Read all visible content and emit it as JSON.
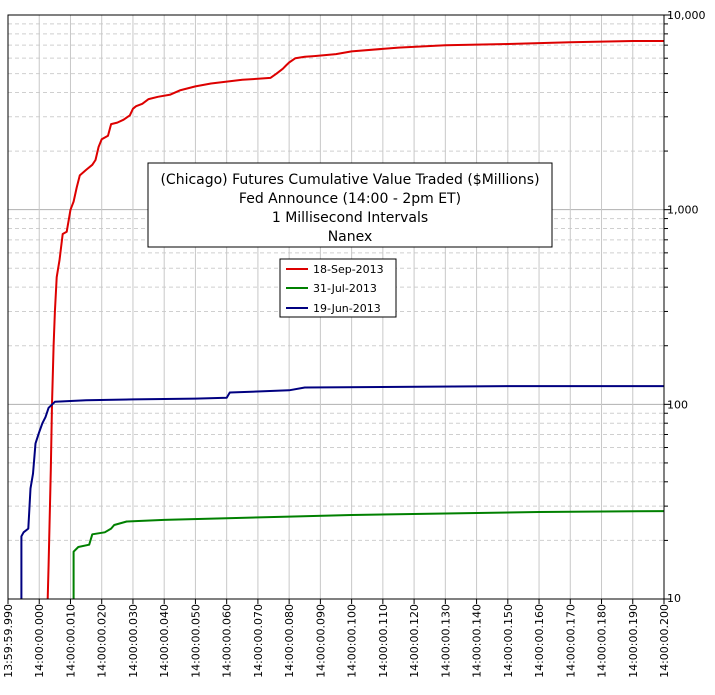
{
  "chart_data": {
    "type": "line",
    "title_lines": [
      "(Chicago) Futures Cumulative Value Traded ($Millions)",
      "Fed Announce (14:00 - 2pm ET)",
      "1 Millisecond Intervals",
      "Nanex"
    ],
    "x_ticks": [
      "13:59:59.990",
      "14:00:00.000",
      "14:00:00.010",
      "14:00:00.020",
      "14:00:00.030",
      "14:00:00.040",
      "14:00:00.050",
      "14:00:00.060",
      "14:00:00.070",
      "14:00:00.080",
      "14:00:00.090",
      "14:00:00.100",
      "14:00:00.110",
      "14:00:00.120",
      "14:00:00.130",
      "14:00:00.140",
      "14:00:00.150",
      "14:00:00.160",
      "14:00:00.170",
      "14:00:00.180",
      "14:00:00.190",
      "14:00:00.200"
    ],
    "x_range_ms": [
      -10,
      200
    ],
    "y_scale": "log",
    "y_range": [
      10,
      10000
    ],
    "y_ticks": [
      {
        "value": 10,
        "label": "10"
      },
      {
        "value": 100,
        "label": "100"
      },
      {
        "value": 1000,
        "label": "1,000"
      },
      {
        "value": 10000,
        "label": "10,000"
      }
    ],
    "grid": true,
    "legend_placement": "center",
    "series": [
      {
        "name": "18-Sep-2013",
        "color": "#dd0000",
        "points": [
          [
            2.7,
            10
          ],
          [
            3,
            15
          ],
          [
            3.7,
            46
          ],
          [
            4.1,
            100
          ],
          [
            4.6,
            200
          ],
          [
            5,
            300
          ],
          [
            5.6,
            450
          ],
          [
            6.5,
            550
          ],
          [
            7.5,
            750
          ],
          [
            8.8,
            770
          ],
          [
            10,
            1000
          ],
          [
            11,
            1100
          ],
          [
            12,
            1300
          ],
          [
            13,
            1500
          ],
          [
            15,
            1600
          ],
          [
            17,
            1700
          ],
          [
            18,
            1800
          ],
          [
            19,
            2100
          ],
          [
            20,
            2300
          ],
          [
            22,
            2400
          ],
          [
            23,
            2750
          ],
          [
            25,
            2800
          ],
          [
            27,
            2900
          ],
          [
            29,
            3050
          ],
          [
            30,
            3300
          ],
          [
            31,
            3400
          ],
          [
            33,
            3500
          ],
          [
            35,
            3700
          ],
          [
            38,
            3800
          ],
          [
            42,
            3900
          ],
          [
            45,
            4100
          ],
          [
            50,
            4300
          ],
          [
            55,
            4450
          ],
          [
            60,
            4550
          ],
          [
            65,
            4650
          ],
          [
            70,
            4700
          ],
          [
            74,
            4750
          ],
          [
            76,
            5000
          ],
          [
            78,
            5300
          ],
          [
            79,
            5500
          ],
          [
            80,
            5700
          ],
          [
            82,
            6000
          ],
          [
            85,
            6100
          ],
          [
            88,
            6150
          ],
          [
            95,
            6300
          ],
          [
            100,
            6500
          ],
          [
            115,
            6800
          ],
          [
            130,
            7000
          ],
          [
            150,
            7100
          ],
          [
            170,
            7250
          ],
          [
            190,
            7350
          ],
          [
            200,
            7350
          ]
        ]
      },
      {
        "name": "31-Jul-2013",
        "color": "#008000",
        "points": [
          [
            11,
            10
          ],
          [
            11,
            17.5
          ],
          [
            12.5,
            18.5
          ],
          [
            16,
            19
          ],
          [
            17,
            21.5
          ],
          [
            21,
            22
          ],
          [
            23,
            23
          ],
          [
            24,
            24
          ],
          [
            28,
            25
          ],
          [
            40,
            25.5
          ],
          [
            60,
            26
          ],
          [
            80,
            26.5
          ],
          [
            100,
            27
          ],
          [
            130,
            27.5
          ],
          [
            160,
            28
          ],
          [
            200,
            28.3
          ]
        ]
      },
      {
        "name": "19-Jun-2013",
        "color": "#000080",
        "points": [
          [
            -5.7,
            10
          ],
          [
            -5.7,
            21
          ],
          [
            -5,
            22
          ],
          [
            -3.5,
            23
          ],
          [
            -2.8,
            37
          ],
          [
            -2,
            44
          ],
          [
            -1.2,
            63
          ],
          [
            0,
            72
          ],
          [
            1,
            80
          ],
          [
            2,
            86
          ],
          [
            3,
            96
          ],
          [
            5,
            103
          ],
          [
            10,
            104
          ],
          [
            15,
            105
          ],
          [
            30,
            106
          ],
          [
            50,
            107
          ],
          [
            60,
            108
          ],
          [
            61,
            115
          ],
          [
            80,
            118
          ],
          [
            85,
            122
          ],
          [
            150,
            124
          ],
          [
            200,
            124
          ]
        ]
      }
    ]
  }
}
